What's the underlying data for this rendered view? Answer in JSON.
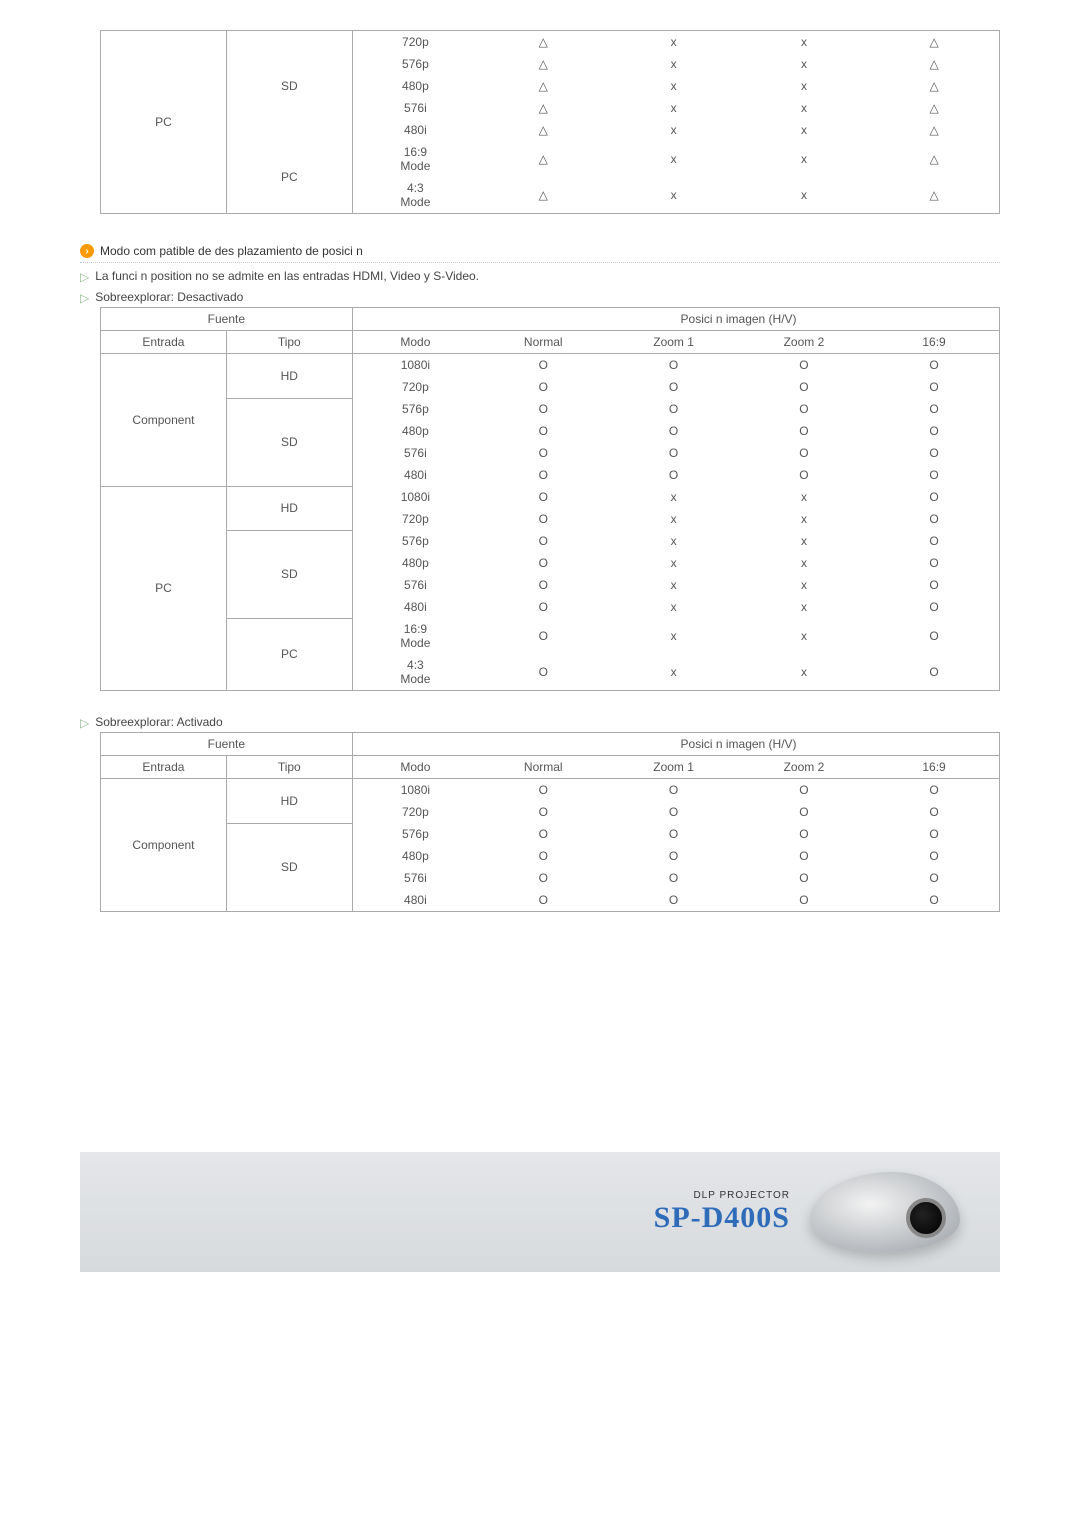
{
  "symbols": {
    "tri": "△",
    "x": "x",
    "circ": "O"
  },
  "table1": {
    "entrada": "PC",
    "groups": [
      {
        "tipo": "SD",
        "rows": [
          {
            "modo": "720p",
            "c": [
              "tri",
              "x",
              "x",
              "tri"
            ]
          },
          {
            "modo": "576p",
            "c": [
              "tri",
              "x",
              "x",
              "tri"
            ]
          },
          {
            "modo": "480p",
            "c": [
              "tri",
              "x",
              "x",
              "tri"
            ]
          },
          {
            "modo": "576i",
            "c": [
              "tri",
              "x",
              "x",
              "tri"
            ]
          },
          {
            "modo": "480i",
            "c": [
              "tri",
              "x",
              "x",
              "tri"
            ]
          }
        ]
      },
      {
        "tipo": "PC",
        "rows": [
          {
            "modo": "16:9\nMode",
            "c": [
              "tri",
              "x",
              "x",
              "tri"
            ]
          },
          {
            "modo": "4:3\nMode",
            "c": [
              "tri",
              "x",
              "x",
              "tri"
            ]
          }
        ]
      }
    ]
  },
  "heading1": "Modo com patible de des plazamiento de  posici n",
  "note1": "La funci n position no se admite en las entradas HDMI, Video y S-Video.",
  "note2": "Sobreexplorar: Desactivado",
  "table2": {
    "head": {
      "fuente": "Fuente",
      "pos": "Posici n imagen (H/V)",
      "entrada": "Entrada",
      "tipo": "Tipo",
      "modo": "Modo",
      "normal": "Normal",
      "zoom1": "Zoom 1",
      "zoom2": "Zoom 2",
      "r169": "16:9"
    },
    "blocks": [
      {
        "entrada": "Component",
        "groups": [
          {
            "tipo": "HD",
            "rows": [
              {
                "modo": "1080i",
                "c": [
                  "circ",
                  "circ",
                  "circ",
                  "circ"
                ]
              },
              {
                "modo": "720p",
                "c": [
                  "circ",
                  "circ",
                  "circ",
                  "circ"
                ]
              }
            ]
          },
          {
            "tipo": "SD",
            "rows": [
              {
                "modo": "576p",
                "c": [
                  "circ",
                  "circ",
                  "circ",
                  "circ"
                ]
              },
              {
                "modo": "480p",
                "c": [
                  "circ",
                  "circ",
                  "circ",
                  "circ"
                ]
              },
              {
                "modo": "576i",
                "c": [
                  "circ",
                  "circ",
                  "circ",
                  "circ"
                ]
              },
              {
                "modo": "480i",
                "c": [
                  "circ",
                  "circ",
                  "circ",
                  "circ"
                ]
              }
            ]
          }
        ]
      },
      {
        "entrada": "PC",
        "groups": [
          {
            "tipo": "HD",
            "rows": [
              {
                "modo": "1080i",
                "c": [
                  "circ",
                  "x",
                  "x",
                  "circ"
                ]
              },
              {
                "modo": "720p",
                "c": [
                  "circ",
                  "x",
                  "x",
                  "circ"
                ]
              }
            ]
          },
          {
            "tipo": "SD",
            "rows": [
              {
                "modo": "576p",
                "c": [
                  "circ",
                  "x",
                  "x",
                  "circ"
                ]
              },
              {
                "modo": "480p",
                "c": [
                  "circ",
                  "x",
                  "x",
                  "circ"
                ]
              },
              {
                "modo": "576i",
                "c": [
                  "circ",
                  "x",
                  "x",
                  "circ"
                ]
              },
              {
                "modo": "480i",
                "c": [
                  "circ",
                  "x",
                  "x",
                  "circ"
                ]
              }
            ]
          },
          {
            "tipo": "PC",
            "rows": [
              {
                "modo": "16:9\nMode",
                "c": [
                  "circ",
                  "x",
                  "x",
                  "circ"
                ]
              },
              {
                "modo": "4:3\nMode",
                "c": [
                  "circ",
                  "x",
                  "x",
                  "circ"
                ]
              }
            ]
          }
        ]
      }
    ]
  },
  "note3": "Sobreexplorar: Activado",
  "table3": {
    "head": {
      "fuente": "Fuente",
      "pos": "Posici n imagen (H/V)",
      "entrada": "Entrada",
      "tipo": "Tipo",
      "modo": "Modo",
      "normal": "Normal",
      "zoom1": "Zoom 1",
      "zoom2": "Zoom 2",
      "r169": "16:9"
    },
    "blocks": [
      {
        "entrada": "Component",
        "groups": [
          {
            "tipo": "HD",
            "rows": [
              {
                "modo": "1080i",
                "c": [
                  "circ",
                  "circ",
                  "circ",
                  "circ"
                ]
              },
              {
                "modo": "720p",
                "c": [
                  "circ",
                  "circ",
                  "circ",
                  "circ"
                ]
              }
            ]
          },
          {
            "tipo": "SD",
            "rows": [
              {
                "modo": "576p",
                "c": [
                  "circ",
                  "circ",
                  "circ",
                  "circ"
                ]
              },
              {
                "modo": "480p",
                "c": [
                  "circ",
                  "circ",
                  "circ",
                  "circ"
                ]
              },
              {
                "modo": "576i",
                "c": [
                  "circ",
                  "circ",
                  "circ",
                  "circ"
                ]
              },
              {
                "modo": "480i",
                "c": [
                  "circ",
                  "circ",
                  "circ",
                  "circ"
                ]
              }
            ]
          }
        ]
      }
    ]
  },
  "footer": {
    "small": "DLP PROJECTOR",
    "model": "SP-D400S"
  }
}
